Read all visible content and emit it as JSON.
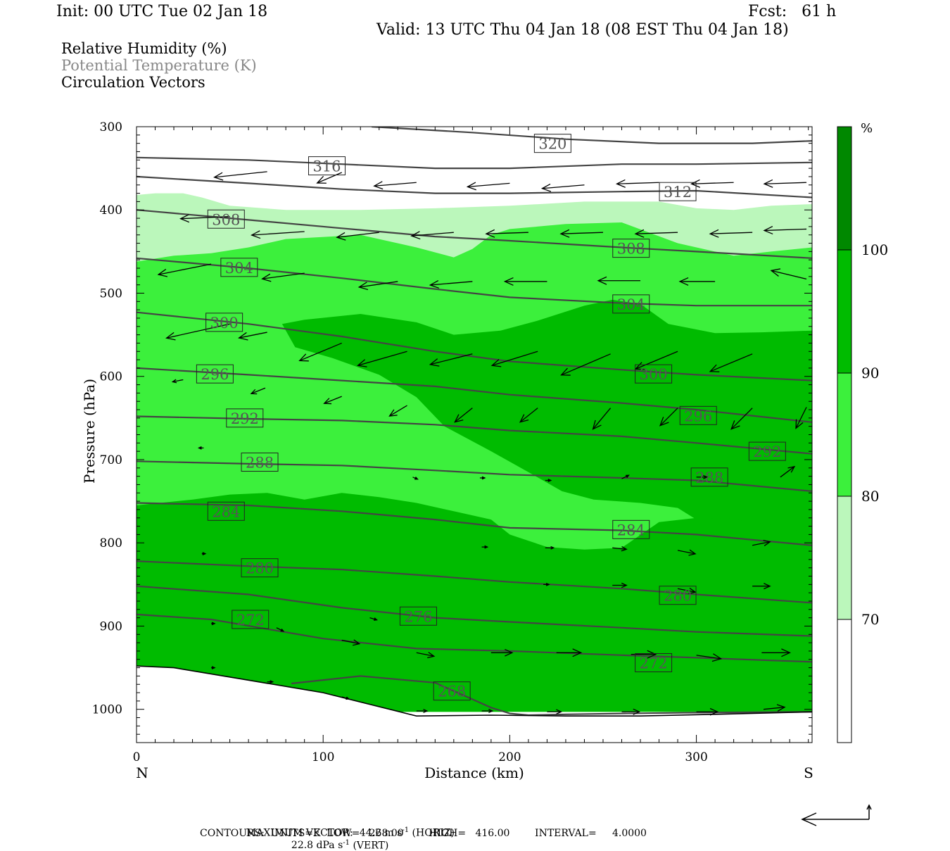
{
  "header": {
    "init": "Init: 00 UTC Tue 02 Jan 18",
    "fcst": "Fcst:   61 h",
    "valid": "Valid: 13 UTC Thu 04 Jan 18 (08 EST Thu 04 Jan 18)"
  },
  "legend": {
    "rh": "Relative Humidity (%)",
    "theta": "Potential Temperature (K)",
    "vectors": "Circulation Vectors"
  },
  "colors": {
    "rh_70_80": "#bbf7bb",
    "rh_80_90": "#3cf03c",
    "rh_90_100": "#00bb00",
    "rh_100": "#008800",
    "contour": "#444444",
    "theta_label_text": "#555555"
  },
  "chart_data": {
    "type": "cross-section",
    "xlabel": "Distance (km)",
    "ylabel": "Pressure (hPa)",
    "x_ticks": [
      0,
      100,
      200,
      300
    ],
    "y_ticks": [
      300,
      400,
      500,
      600,
      700,
      800,
      900,
      1000
    ],
    "xlim": [
      0,
      362
    ],
    "ylim": [
      300,
      1040
    ],
    "x_end_labels": {
      "left": "N",
      "right": "S"
    },
    "colorbar": {
      "unit": "%",
      "levels": [
        70,
        80,
        90,
        100
      ]
    },
    "theta_contours": [
      {
        "value": 268,
        "x": [
          83,
          120,
          160,
          190,
          200,
          210,
          230,
          260,
          300,
          362
        ],
        "p": [
          969,
          960,
          968,
          998,
          1005,
          1007,
          1006,
          1005,
          1004,
          1003
        ]
      },
      {
        "value": 272,
        "x": [
          0,
          40,
          100,
          150,
          200,
          260,
          300,
          362
        ],
        "p": [
          886,
          892,
          915,
          927,
          930,
          935,
          938,
          943
        ]
      },
      {
        "value": 276,
        "x": [
          0,
          60,
          110,
          160,
          200,
          260,
          300,
          362
        ],
        "p": [
          852,
          862,
          878,
          890,
          895,
          902,
          907,
          912
        ]
      },
      {
        "value": 280,
        "x": [
          0,
          60,
          110,
          160,
          200,
          260,
          300,
          362
        ],
        "p": [
          822,
          828,
          832,
          840,
          847,
          855,
          862,
          872
        ]
      },
      {
        "value": 284,
        "x": [
          0,
          60,
          110,
          160,
          200,
          260,
          300,
          362
        ],
        "p": [
          752,
          755,
          762,
          772,
          782,
          785,
          790,
          803
        ]
      },
      {
        "value": 288,
        "x": [
          0,
          60,
          110,
          160,
          200,
          260,
          300,
          362
        ],
        "p": [
          702,
          705,
          707,
          713,
          718,
          722,
          725,
          738
        ]
      },
      {
        "value": 292,
        "x": [
          0,
          60,
          110,
          160,
          200,
          260,
          300,
          362
        ],
        "p": [
          648,
          651,
          653,
          658,
          665,
          672,
          680,
          693
        ]
      },
      {
        "value": 296,
        "x": [
          0,
          60,
          110,
          160,
          200,
          260,
          300,
          362
        ],
        "p": [
          590,
          598,
          605,
          612,
          622,
          632,
          640,
          655
        ]
      },
      {
        "value": 300,
        "x": [
          0,
          60,
          110,
          160,
          200,
          260,
          300,
          362
        ],
        "p": [
          523,
          537,
          552,
          570,
          582,
          592,
          598,
          605
        ]
      },
      {
        "value": 304,
        "x": [
          0,
          60,
          110,
          160,
          200,
          260,
          300,
          362
        ],
        "p": [
          458,
          470,
          482,
          495,
          505,
          512,
          515,
          515
        ]
      },
      {
        "value": 308,
        "x": [
          0,
          60,
          110,
          160,
          200,
          260,
          300,
          362
        ],
        "p": [
          400,
          412,
          422,
          432,
          437,
          445,
          450,
          458
        ]
      },
      {
        "value": 312,
        "x": [
          0,
          60,
          110,
          160,
          200,
          260,
          300,
          362
        ],
        "p": [
          360,
          368,
          375,
          380,
          380,
          378,
          377,
          385
        ]
      },
      {
        "value": 316,
        "x": [
          0,
          60,
          110,
          160,
          200,
          260,
          300,
          362
        ],
        "p": [
          337,
          340,
          345,
          350,
          350,
          345,
          345,
          343
        ]
      },
      {
        "value": 320,
        "x": [
          126,
          180,
          230,
          280,
          330,
          362
        ],
        "p": [
          300,
          307,
          315,
          320,
          320,
          317
        ]
      }
    ],
    "theta_labels": [
      {
        "text": "320",
        "x": 223,
        "p": 320
      },
      {
        "text": "316",
        "x": 102,
        "p": 347
      },
      {
        "text": "312",
        "x": 290,
        "p": 378
      },
      {
        "text": "308",
        "x": 48,
        "p": 411
      },
      {
        "text": "308",
        "x": 265,
        "p": 446
      },
      {
        "text": "304",
        "x": 55,
        "p": 469
      },
      {
        "text": "304",
        "x": 265,
        "p": 513
      },
      {
        "text": "300",
        "x": 47,
        "p": 535
      },
      {
        "text": "300",
        "x": 277,
        "p": 597
      },
      {
        "text": "296",
        "x": 42,
        "p": 597
      },
      {
        "text": "296",
        "x": 301,
        "p": 647
      },
      {
        "text": "292",
        "x": 58,
        "p": 650
      },
      {
        "text": "292",
        "x": 338,
        "p": 690
      },
      {
        "text": "288",
        "x": 66,
        "p": 703
      },
      {
        "text": "288",
        "x": 307,
        "p": 721
      },
      {
        "text": "284",
        "x": 48,
        "p": 762
      },
      {
        "text": "284",
        "x": 265,
        "p": 784
      },
      {
        "text": "280",
        "x": 66,
        "p": 830
      },
      {
        "text": "280",
        "x": 290,
        "p": 863
      },
      {
        "text": "276",
        "x": 151,
        "p": 888
      },
      {
        "text": "272",
        "x": 61,
        "p": 892
      },
      {
        "text": "272",
        "x": 277,
        "p": 944
      },
      {
        "text": "268",
        "x": 169,
        "p": 978
      }
    ],
    "rh_regions": [
      {
        "level": "70-80",
        "x": [
          0,
          10,
          25,
          35,
          50,
          80,
          120,
          160,
          200,
          240,
          280,
          300,
          320,
          340,
          362,
          362,
          0
        ],
        "p": [
          382,
          380,
          380,
          385,
          395,
          400,
          400,
          398,
          395,
          390,
          390,
          398,
          400,
          395,
          393,
          1003,
          1003
        ]
      },
      {
        "level": "80-90",
        "x": [
          0,
          20,
          40,
          60,
          80,
          120,
          150,
          170,
          180,
          190,
          200,
          230,
          260,
          290,
          320,
          340,
          362,
          362,
          0
        ],
        "p": [
          462,
          455,
          452,
          445,
          435,
          430,
          445,
          457,
          447,
          430,
          423,
          417,
          415,
          440,
          455,
          450,
          445,
          1003,
          1003
        ]
      },
      {
        "level": "90-100",
        "x": [
          0,
          30,
          50,
          70,
          90,
          110,
          130,
          150,
          170,
          190,
          200,
          220,
          240,
          260,
          280,
          300,
          320,
          345,
          362,
          362,
          320,
          290,
          270,
          255,
          245,
          235,
          215,
          200,
          180,
          150,
          120,
          95,
          80,
          77,
          86,
          110,
          135,
          160,
          185,
          200,
          215,
          245,
          265,
          290,
          310,
          330,
          355,
          362,
          362,
          0
        ],
        "p": [
          755,
          748,
          742,
          740,
          748,
          740,
          745,
          752,
          762,
          772,
          790,
          805,
          808,
          806,
          775,
          770,
          768,
          770,
          775,
          1003,
          1003,
          1003,
          1003,
          1003,
          1003,
          1003,
          1003,
          1003,
          990,
          970,
          953,
          940,
          920,
          900,
          895,
          895,
          893,
          895,
          905,
          920,
          940,
          955,
          978,
          995,
          1003,
          1003,
          1003,
          1003,
          1003,
          1003
        ]
      },
      {
        "level": "90-100",
        "x": [
          78,
          90,
          120,
          150,
          170,
          195,
          215,
          240,
          255,
          270,
          285,
          310,
          335,
          362,
          362,
          340,
          315,
          300,
          290,
          270,
          245,
          228,
          210,
          190,
          165,
          150,
          130,
          105,
          85,
          78
        ],
        "p": [
          537,
          532,
          525,
          535,
          550,
          545,
          533,
          515,
          508,
          513,
          537,
          548,
          547,
          545,
          790,
          778,
          770,
          772,
          758,
          752,
          748,
          738,
          715,
          690,
          660,
          625,
          598,
          578,
          565,
          537
        ]
      }
    ],
    "wind_vectors": [
      {
        "x": 70,
        "p": 354,
        "dx": -75,
        "dy": 8
      },
      {
        "x": 110,
        "p": 355,
        "dx": -35,
        "dy": 15
      },
      {
        "x": 150,
        "p": 367,
        "dx": -60,
        "dy": 5
      },
      {
        "x": 200,
        "p": 368,
        "dx": -60,
        "dy": 5
      },
      {
        "x": 240,
        "p": 370,
        "dx": -60,
        "dy": 5
      },
      {
        "x": 280,
        "p": 367,
        "dx": -60,
        "dy": 2
      },
      {
        "x": 320,
        "p": 367,
        "dx": -60,
        "dy": 2
      },
      {
        "x": 359,
        "p": 367,
        "dx": -60,
        "dy": 2
      },
      {
        "x": 50,
        "p": 408,
        "dx": -70,
        "dy": 3
      },
      {
        "x": 90,
        "p": 426,
        "dx": -75,
        "dy": 5
      },
      {
        "x": 130,
        "p": 427,
        "dx": -60,
        "dy": 7
      },
      {
        "x": 170,
        "p": 427,
        "dx": -60,
        "dy": 5
      },
      {
        "x": 210,
        "p": 427,
        "dx": -60,
        "dy": 2
      },
      {
        "x": 250,
        "p": 427,
        "dx": -60,
        "dy": 2
      },
      {
        "x": 290,
        "p": 427,
        "dx": -60,
        "dy": 2
      },
      {
        "x": 330,
        "p": 427,
        "dx": -60,
        "dy": 2
      },
      {
        "x": 359,
        "p": 423,
        "dx": -60,
        "dy": 2
      },
      {
        "x": 40,
        "p": 465,
        "dx": -75,
        "dy": 15
      },
      {
        "x": 90,
        "p": 476,
        "dx": -60,
        "dy": 8
      },
      {
        "x": 140,
        "p": 486,
        "dx": -55,
        "dy": 8
      },
      {
        "x": 180,
        "p": 486,
        "dx": -60,
        "dy": 5
      },
      {
        "x": 220,
        "p": 486,
        "dx": -60,
        "dy": 0
      },
      {
        "x": 270,
        "p": 485,
        "dx": -60,
        "dy": 0
      },
      {
        "x": 310,
        "p": 486,
        "dx": -50,
        "dy": 0
      },
      {
        "x": 359,
        "p": 483,
        "dx": -50,
        "dy": -12
      },
      {
        "x": 50,
        "p": 537,
        "dx": -90,
        "dy": 20
      },
      {
        "x": 70,
        "p": 547,
        "dx": -40,
        "dy": 8
      },
      {
        "x": 110,
        "p": 560,
        "dx": -60,
        "dy": 25
      },
      {
        "x": 145,
        "p": 570,
        "dx": -70,
        "dy": 20
      },
      {
        "x": 180,
        "p": 573,
        "dx": -60,
        "dy": 15
      },
      {
        "x": 215,
        "p": 570,
        "dx": -65,
        "dy": 20
      },
      {
        "x": 254,
        "p": 573,
        "dx": -70,
        "dy": 30
      },
      {
        "x": 290,
        "p": 570,
        "dx": -60,
        "dy": 25
      },
      {
        "x": 330,
        "p": 573,
        "dx": -60,
        "dy": 25
      },
      {
        "x": 25,
        "p": 604,
        "dx": -15,
        "dy": 3
      },
      {
        "x": 69,
        "p": 614,
        "dx": -20,
        "dy": 8
      },
      {
        "x": 110,
        "p": 624,
        "dx": -25,
        "dy": 10
      },
      {
        "x": 145,
        "p": 635,
        "dx": -25,
        "dy": 15
      },
      {
        "x": 180,
        "p": 638,
        "dx": -25,
        "dy": 20
      },
      {
        "x": 215,
        "p": 638,
        "dx": -25,
        "dy": 20
      },
      {
        "x": 254,
        "p": 638,
        "dx": -25,
        "dy": 30
      },
      {
        "x": 290,
        "p": 638,
        "dx": -25,
        "dy": 25
      },
      {
        "x": 330,
        "p": 638,
        "dx": -30,
        "dy": 30
      },
      {
        "x": 359,
        "p": 637,
        "dx": -15,
        "dy": 30
      },
      {
        "x": 36,
        "p": 686,
        "dx": -7,
        "dy": 0
      },
      {
        "x": 148,
        "p": 721,
        "dx": 7,
        "dy": 3
      },
      {
        "x": 184,
        "p": 722,
        "dx": 7,
        "dy": 0
      },
      {
        "x": 219,
        "p": 725,
        "dx": 8,
        "dy": 0
      },
      {
        "x": 260,
        "p": 723,
        "dx": 10,
        "dy": -5
      },
      {
        "x": 300,
        "p": 721,
        "dx": 15,
        "dy": 0
      },
      {
        "x": 345,
        "p": 721,
        "dx": 20,
        "dy": -15
      },
      {
        "x": 35,
        "p": 813,
        "dx": 5,
        "dy": 0
      },
      {
        "x": 185,
        "p": 805,
        "dx": 8,
        "dy": 0
      },
      {
        "x": 219,
        "p": 806,
        "dx": 12,
        "dy": 0
      },
      {
        "x": 255,
        "p": 806,
        "dx": 20,
        "dy": 2
      },
      {
        "x": 290,
        "p": 809,
        "dx": 25,
        "dy": 5
      },
      {
        "x": 330,
        "p": 803,
        "dx": 25,
        "dy": -5
      },
      {
        "x": 125,
        "p": 890,
        "dx": 10,
        "dy": 3
      },
      {
        "x": 218,
        "p": 850,
        "dx": 8,
        "dy": 0
      },
      {
        "x": 255,
        "p": 851,
        "dx": 20,
        "dy": 0
      },
      {
        "x": 290,
        "p": 855,
        "dx": 25,
        "dy": 5
      },
      {
        "x": 330,
        "p": 852,
        "dx": 25,
        "dy": 0
      },
      {
        "x": 40,
        "p": 897,
        "dx": 5,
        "dy": 0
      },
      {
        "x": 75,
        "p": 902,
        "dx": 10,
        "dy": 5
      },
      {
        "x": 110,
        "p": 917,
        "dx": 25,
        "dy": 5
      },
      {
        "x": 150,
        "p": 932,
        "dx": 25,
        "dy": 5
      },
      {
        "x": 190,
        "p": 932,
        "dx": 30,
        "dy": 0
      },
      {
        "x": 225,
        "p": 932,
        "dx": 35,
        "dy": 0
      },
      {
        "x": 265,
        "p": 934,
        "dx": 35,
        "dy": 0
      },
      {
        "x": 300,
        "p": 935,
        "dx": 35,
        "dy": 5
      },
      {
        "x": 335,
        "p": 932,
        "dx": 40,
        "dy": 0
      },
      {
        "x": 40,
        "p": 950,
        "dx": 5,
        "dy": 0
      },
      {
        "x": 70,
        "p": 967,
        "dx": 8,
        "dy": 0
      },
      {
        "x": 110,
        "p": 985,
        "dx": 10,
        "dy": 3
      },
      {
        "x": 150,
        "p": 1002,
        "dx": 15,
        "dy": 0
      },
      {
        "x": 185,
        "p": 1002,
        "dx": 15,
        "dy": 0
      },
      {
        "x": 220,
        "p": 1003,
        "dx": 20,
        "dy": 0
      },
      {
        "x": 260,
        "p": 1003,
        "dx": 25,
        "dy": 0
      },
      {
        "x": 300,
        "p": 1003,
        "dx": 30,
        "dy": 0
      },
      {
        "x": 336,
        "p": 1000,
        "dx": 30,
        "dy": -3
      }
    ],
    "surface": {
      "x": [
        0,
        20,
        60,
        100,
        150,
        190,
        230,
        270,
        310,
        362
      ],
      "p": [
        948,
        950,
        965,
        980,
        1008,
        1007,
        1008,
        1008,
        1006,
        1003
      ]
    }
  },
  "footer": {
    "line1_a": "MAXIMUM VECTOR:  44.2 m s",
    "line1_b": " (HORIZ)",
    "line1_c": "22.8 dPa s",
    "line1_d": " (VERT)",
    "sup": "-1",
    "line2": "CONTOURS:  UNITS=K  LOW=   268.00        HIGH=   416.00        INTERVAL=     4.0000"
  }
}
